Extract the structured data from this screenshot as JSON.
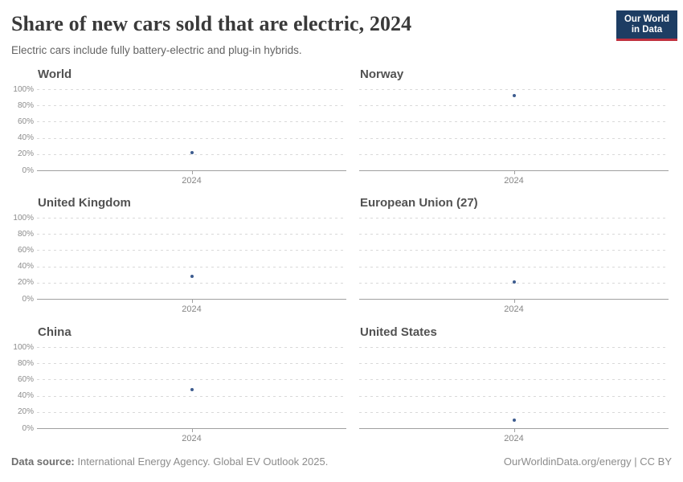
{
  "header": {
    "title": "Share of new cars sold that are electric, 2024",
    "subtitle": "Electric cars include fully battery-electric and plug-in hybrids."
  },
  "logo": {
    "line1": "Our World",
    "line2": "in Data",
    "bg_color": "#1d3d63",
    "accent_color": "#c0303e"
  },
  "footer": {
    "source_label": "Data source:",
    "source_text": " International Energy Agency. Global EV Outlook 2025.",
    "link": "OurWorldinData.org/energy",
    "separator": " | ",
    "license": "CC BY"
  },
  "chart_data": {
    "type": "scatter",
    "title": "Share of new cars sold that are electric, 2024",
    "x_tick_label": "2024",
    "ylim": [
      0,
      100
    ],
    "grid": true,
    "grid_values": [
      100,
      80,
      60,
      40,
      20,
      0
    ],
    "y_tick_suffix": "%",
    "legend_position": "none",
    "point_color": "#3d5c8f",
    "panels": [
      {
        "title": "World",
        "x": 2024,
        "value_pct": 22
      },
      {
        "title": "Norway",
        "x": 2024,
        "value_pct": 92
      },
      {
        "title": "United Kingdom",
        "x": 2024,
        "value_pct": 28
      },
      {
        "title": "European Union (27)",
        "x": 2024,
        "value_pct": 21
      },
      {
        "title": "China",
        "x": 2024,
        "value_pct": 48
      },
      {
        "title": "United States",
        "x": 2024,
        "value_pct": 10
      }
    ]
  }
}
